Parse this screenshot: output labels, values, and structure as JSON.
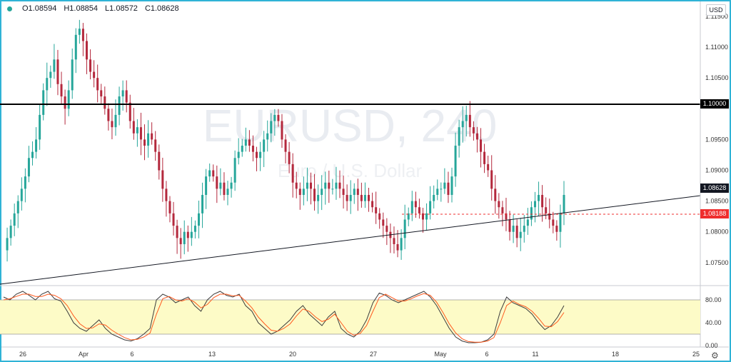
{
  "legend": {
    "open": "O1.08594",
    "high": "H1.08854",
    "low": "L1.08572",
    "close": "C1.08628"
  },
  "currency_button": "USD",
  "watermark": {
    "symbol": "EURUSD, 240",
    "subtitle": "Euro / U.S. Dollar"
  },
  "price_axis": {
    "ticks": [
      "1.11500",
      "1.11000",
      "1.10500",
      "1.09500",
      "1.09000",
      "1.08500",
      "1.08000",
      "1.07500"
    ],
    "tick_values": [
      1.115,
      1.11,
      1.105,
      1.095,
      1.09,
      1.085,
      1.08,
      1.075
    ]
  },
  "oscillator_axis": {
    "ticks": [
      "80.00",
      "40.00",
      "0.00"
    ],
    "tick_values": [
      80,
      40,
      0
    ]
  },
  "time_axis": {
    "labels": [
      "26",
      "Apr",
      "6",
      "13",
      "20",
      "27",
      "May",
      "6",
      "11",
      "18",
      "25"
    ]
  },
  "price_tags": {
    "resistance": {
      "text": "1.10000",
      "color": "#000000"
    },
    "current": {
      "text": "1.08628",
      "color": "#131722"
    },
    "support": {
      "text": "1.08188",
      "color": "#ef2d2d"
    }
  },
  "colors": {
    "up_candle": "#26a69a",
    "down_candle": "#b4293d",
    "osc_k": "#3c3c3c",
    "osc_d": "#ff5a1f",
    "osc_band": "#fdfbc7",
    "accent": "#2fb3d6"
  },
  "chart_data": {
    "type": "candlestick",
    "price_range": [
      1.0715,
      1.1172
    ],
    "oscillator_range": [
      0,
      100
    ],
    "levels": {
      "resistance": 1.1,
      "support": 1.08188
    },
    "close_path": [
      1.077,
      1.079,
      1.081,
      1.083,
      1.085,
      1.087,
      1.089,
      1.092,
      1.093,
      1.095,
      1.099,
      1.103,
      1.105,
      1.106,
      1.108,
      1.104,
      1.102,
      1.1,
      1.103,
      1.108,
      1.112,
      1.113,
      1.111,
      1.108,
      1.106,
      1.105,
      1.103,
      1.102,
      1.1,
      1.098,
      1.097,
      1.099,
      1.102,
      1.103,
      1.101,
      1.098,
      1.096,
      1.097,
      1.095,
      1.094,
      1.096,
      1.095,
      1.093,
      1.09,
      1.087,
      1.085,
      1.083,
      1.081,
      1.079,
      1.078,
      1.08,
      1.079,
      1.08,
      1.081,
      1.083,
      1.086,
      1.089,
      1.09,
      1.089,
      1.087,
      1.088,
      1.086,
      1.087,
      1.088,
      1.092,
      1.093,
      1.094,
      1.095,
      1.094,
      1.093,
      1.092,
      1.093,
      1.095,
      1.096,
      1.098,
      1.099,
      1.098,
      1.095,
      1.093,
      1.091,
      1.088,
      1.087,
      1.086,
      1.087,
      1.088,
      1.087,
      1.085,
      1.086,
      1.087,
      1.088,
      1.087,
      1.087,
      1.088,
      1.087,
      1.086,
      1.085,
      1.086,
      1.087,
      1.086,
      1.085,
      1.086,
      1.085,
      1.084,
      1.083,
      1.082,
      1.081,
      1.08,
      1.079,
      1.078,
      1.077,
      1.079,
      1.082,
      1.083,
      1.085,
      1.084,
      1.083,
      1.082,
      1.083,
      1.085,
      1.086,
      1.087,
      1.087,
      1.088,
      1.086,
      1.089,
      1.094,
      1.097,
      1.098,
      1.099,
      1.097,
      1.096,
      1.095,
      1.093,
      1.091,
      1.09,
      1.087,
      1.085,
      1.084,
      1.083,
      1.082,
      1.08,
      1.081,
      1.079,
      1.08,
      1.081,
      1.082,
      1.084,
      1.085,
      1.086,
      1.084,
      1.083,
      1.082,
      1.081,
      1.08,
      1.083,
      1.086
    ],
    "oscillator_k": [
      85,
      80,
      90,
      95,
      88,
      80,
      90,
      95,
      82,
      78,
      60,
      40,
      30,
      25,
      35,
      45,
      30,
      20,
      15,
      10,
      8,
      12,
      20,
      30,
      80,
      90,
      85,
      75,
      80,
      85,
      70,
      60,
      80,
      90,
      95,
      88,
      85,
      90,
      70,
      60,
      40,
      30,
      20,
      25,
      35,
      45,
      60,
      70,
      55,
      45,
      35,
      50,
      60,
      30,
      20,
      15,
      25,
      45,
      75,
      92,
      88,
      80,
      75,
      80,
      85,
      90,
      95,
      85,
      70,
      50,
      30,
      15,
      8,
      5,
      5,
      6,
      10,
      20,
      60,
      85,
      75,
      70,
      65,
      55,
      40,
      28,
      35,
      50,
      70
    ],
    "oscillator_d": [
      80,
      82,
      86,
      90,
      90,
      86,
      86,
      90,
      88,
      82,
      70,
      52,
      38,
      30,
      31,
      38,
      36,
      27,
      20,
      14,
      10,
      11,
      15,
      22,
      55,
      82,
      86,
      80,
      78,
      82,
      76,
      66,
      72,
      84,
      90,
      90,
      87,
      88,
      78,
      66,
      50,
      38,
      27,
      25,
      30,
      38,
      52,
      64,
      60,
      50,
      42,
      46,
      55,
      40,
      25,
      18,
      21,
      35,
      60,
      84,
      90,
      84,
      78,
      78,
      82,
      87,
      91,
      88,
      76,
      58,
      38,
      22,
      12,
      7,
      6,
      6,
      8,
      14,
      40,
      70,
      78,
      72,
      68,
      60,
      48,
      34,
      33,
      42,
      58
    ]
  }
}
